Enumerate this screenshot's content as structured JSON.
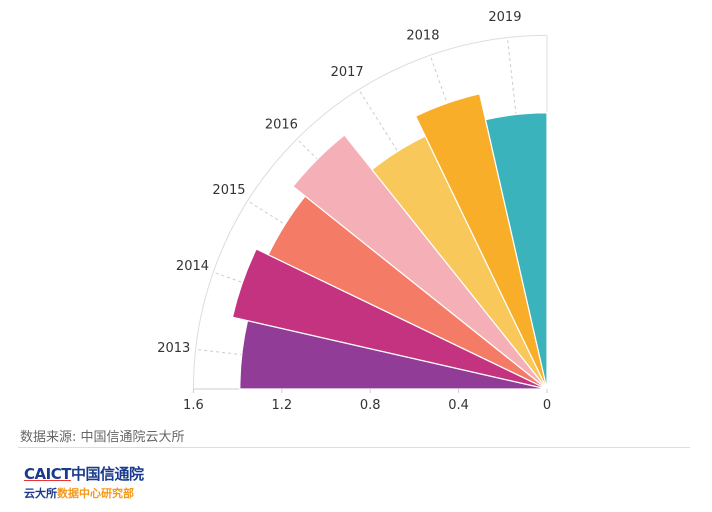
{
  "chart_data": {
    "type": "polar-bar",
    "categories": [
      "2013",
      "2014",
      "2015",
      "2016",
      "2017",
      "2018",
      "2019"
    ],
    "values": [
      1.39,
      1.46,
      1.4,
      1.47,
      1.27,
      1.37,
      1.25
    ],
    "colors": [
      "#913C97",
      "#C4337F",
      "#F47C67",
      "#F5B0B7",
      "#F9C85A",
      "#F9AE2A",
      "#3AB3BC"
    ],
    "radial_axis": {
      "ticks": [
        "1.6",
        "1.2",
        "0.8",
        "0.4",
        "0"
      ],
      "tick_values": [
        1.6,
        1.2,
        0.8,
        0.4,
        0
      ],
      "range": [
        0,
        1.6
      ]
    },
    "angular_range_degrees": [
      180,
      90
    ],
    "grid": true
  },
  "source": "数据来源: 中国信通院云大所",
  "logo": {
    "en": "CAICT",
    "cn": "中国信通院",
    "line2_a": "云大所",
    "line2_b": "数据中心研究部"
  }
}
